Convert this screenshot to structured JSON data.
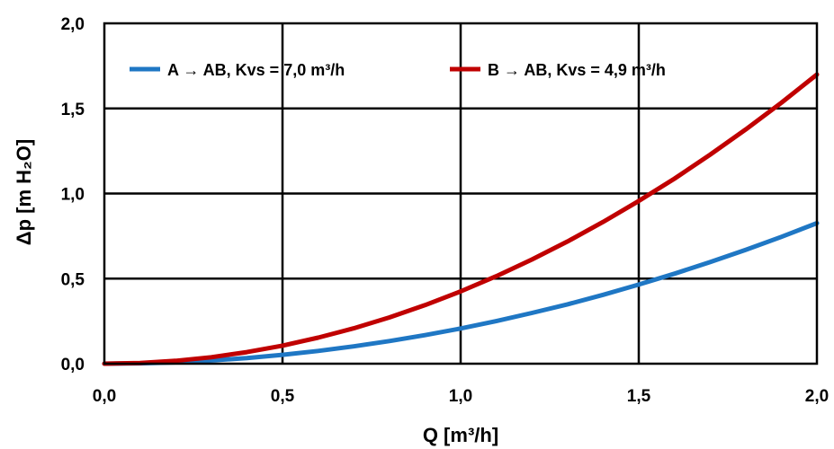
{
  "chart_data": {
    "type": "line",
    "title": "",
    "xlabel": "Q [m³/h]",
    "ylabel": "Δp [m H₂O]",
    "xlim": [
      0,
      2
    ],
    "ylim": [
      0,
      2
    ],
    "x_ticks": [
      "0,0",
      "0,5",
      "1,0",
      "1,5",
      "2,0"
    ],
    "y_ticks": [
      "0,0",
      "0,5",
      "1,0",
      "1,5",
      "2,0"
    ],
    "grid": true,
    "legend_position": "top",
    "series": [
      {
        "name": "A → AB, Kvs = 7,0 m³/h",
        "color": "#1f77c4",
        "x": [
          0,
          0.1,
          0.2,
          0.3,
          0.4,
          0.5,
          0.6,
          0.7,
          0.8,
          0.9,
          1.0,
          1.1,
          1.2,
          1.3,
          1.4,
          1.5,
          1.6,
          1.7,
          1.8,
          1.9,
          2.0
        ],
        "y": [
          0,
          0.002,
          0.008,
          0.019,
          0.033,
          0.052,
          0.075,
          0.102,
          0.133,
          0.168,
          0.207,
          0.25,
          0.298,
          0.349,
          0.405,
          0.465,
          0.529,
          0.597,
          0.669,
          0.745,
          0.826
        ]
      },
      {
        "name": "B → AB, Kvs = 4,9 m³/h",
        "color": "#c00000",
        "x": [
          0,
          0.1,
          0.2,
          0.3,
          0.4,
          0.5,
          0.6,
          0.7,
          0.8,
          0.9,
          1.0,
          1.1,
          1.2,
          1.3,
          1.4,
          1.5,
          1.6,
          1.7,
          1.8,
          1.9,
          2.0
        ],
        "y": [
          0,
          0.004,
          0.017,
          0.038,
          0.068,
          0.106,
          0.153,
          0.208,
          0.272,
          0.344,
          0.425,
          0.514,
          0.612,
          0.718,
          0.833,
          0.956,
          1.087,
          1.228,
          1.376,
          1.533,
          1.699
        ]
      }
    ]
  }
}
